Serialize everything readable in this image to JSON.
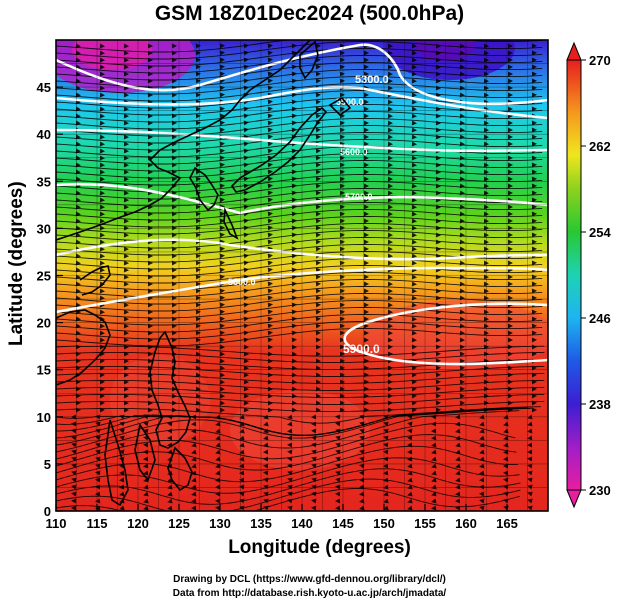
{
  "title": "GSM 18Z01Dec2024 (500.0hPa)",
  "axes": {
    "xlabel": "Longitude (degrees)",
    "ylabel": "Latitude  (degrees)",
    "xticks": [
      "110",
      "115",
      "120",
      "125",
      "130",
      "135",
      "140",
      "145",
      "150",
      "155",
      "160",
      "165"
    ],
    "yticks": [
      "0",
      "5",
      "10",
      "15",
      "20",
      "25",
      "30",
      "35",
      "40",
      "45"
    ],
    "xlim": [
      110,
      170
    ],
    "ylim": [
      0,
      50
    ]
  },
  "colorbar": {
    "ticks": [
      "230",
      "238",
      "246",
      "254",
      "262",
      "270"
    ],
    "range": [
      230,
      270
    ]
  },
  "contour_labels": [
    "5300.0",
    "5500.0",
    "5600.0",
    "5700.0",
    "5800.0",
    "5900.0"
  ],
  "credits": {
    "line1": "Drawing by DCL (https://www.gfd-dennou.org/library/dcl/)",
    "line2": "Data from http://database.rish.kyoto-u.ac.jp/arch/jmadata/"
  },
  "colors": {
    "warm": "#e8231e",
    "cold_low": "#5a18c8",
    "mid_green": "#24c832",
    "mid_cyan": "#1ec8e6",
    "yellow": "#f0e632"
  }
}
